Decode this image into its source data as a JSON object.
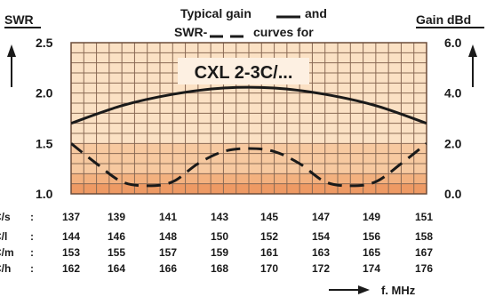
{
  "chart_data": {
    "type": "line",
    "title_lines": [
      "Typical gain",
      "and",
      "SWR-",
      "curves for"
    ],
    "model_label": "CXL 2-3C/...",
    "left_axis": {
      "label": "SWR",
      "ticks": [
        "2.5",
        "2.0",
        "1.5",
        "1.0"
      ],
      "range": [
        1.0,
        2.5
      ]
    },
    "right_axis": {
      "label": "Gain dBd",
      "ticks": [
        "6.0",
        "4.0",
        "2.0",
        "0.0"
      ],
      "range": [
        0.0,
        6.0
      ]
    },
    "x_axis_label": "f. MHz",
    "freq_table": {
      "rows": [
        {
          "label": "C/s",
          "sep": ":",
          "values": [
            "137",
            "139",
            "141",
            "143",
            "145",
            "147",
            "149",
            "151"
          ]
        },
        {
          "label": "C/l",
          "sep": ":",
          "values": [
            "144",
            "146",
            "148",
            "150",
            "152",
            "154",
            "156",
            "158"
          ]
        },
        {
          "label": "C/m",
          "sep": ":",
          "values": [
            "153",
            "155",
            "157",
            "159",
            "161",
            "163",
            "165",
            "167"
          ]
        },
        {
          "label": "C/h",
          "sep": ":",
          "values": [
            "162",
            "164",
            "166",
            "168",
            "170",
            "172",
            "174",
            "176"
          ]
        }
      ]
    },
    "series": [
      {
        "style": "solid",
        "axis": "right",
        "x": [
          0,
          1,
          2,
          3,
          4,
          5,
          6,
          7
        ],
        "values": [
          2.8,
          3.5,
          3.95,
          4.2,
          4.2,
          3.95,
          3.5,
          2.8
        ]
      },
      {
        "style": "dashed",
        "axis": "left",
        "x": [
          0,
          0.5,
          1,
          1.5,
          2,
          2.5,
          3,
          3.5,
          4,
          4.5,
          5,
          5.5,
          6,
          6.5,
          7
        ],
        "values": [
          1.5,
          1.3,
          1.12,
          1.08,
          1.12,
          1.3,
          1.42,
          1.45,
          1.42,
          1.3,
          1.12,
          1.08,
          1.12,
          1.3,
          1.5
        ]
      }
    ],
    "colors": {
      "grid_bg": "#fbe1c4",
      "grid_lines": "#8a6a55",
      "fill_upper": "#f7c9a0",
      "fill_mid": "#f3b17f",
      "fill_low": "#ee9a64",
      "lines": "#1a1a1a"
    }
  }
}
